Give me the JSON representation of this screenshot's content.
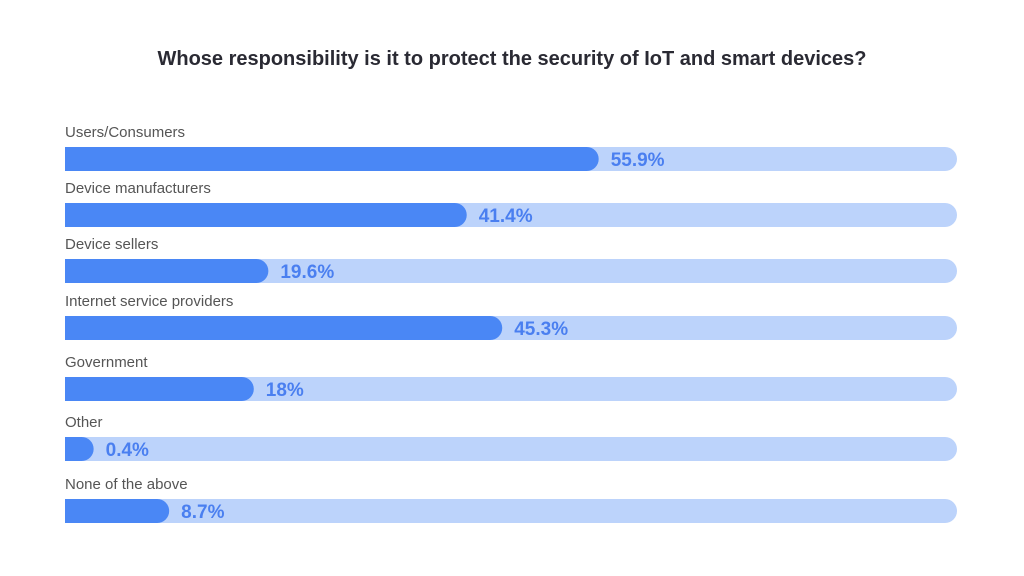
{
  "chart_data": {
    "type": "bar",
    "orientation": "horizontal",
    "title": "Whose responsibility is it to protect the security of IoT and smart devices?",
    "categories": [
      "Users/Consumers",
      "Device manufacturers",
      "Device sellers",
      "Internet service providers",
      "Government",
      "Other",
      "None of the above"
    ],
    "values": [
      55.9,
      41.4,
      19.6,
      45.3,
      18,
      0.4,
      8.7
    ],
    "labels": [
      "55.9%",
      "41.4%",
      "19.6%",
      "45.3%",
      "18%",
      "0.4%",
      "8.7%"
    ],
    "xlabel": "",
    "ylabel": "",
    "xlim": [
      0,
      100
    ],
    "grid": false,
    "legend": "none",
    "colors": {
      "bar": "#4a87f5",
      "track": "#bcd3fb",
      "label": "#4a7ff0",
      "category": "#555555",
      "title": "#2a2a33"
    }
  }
}
